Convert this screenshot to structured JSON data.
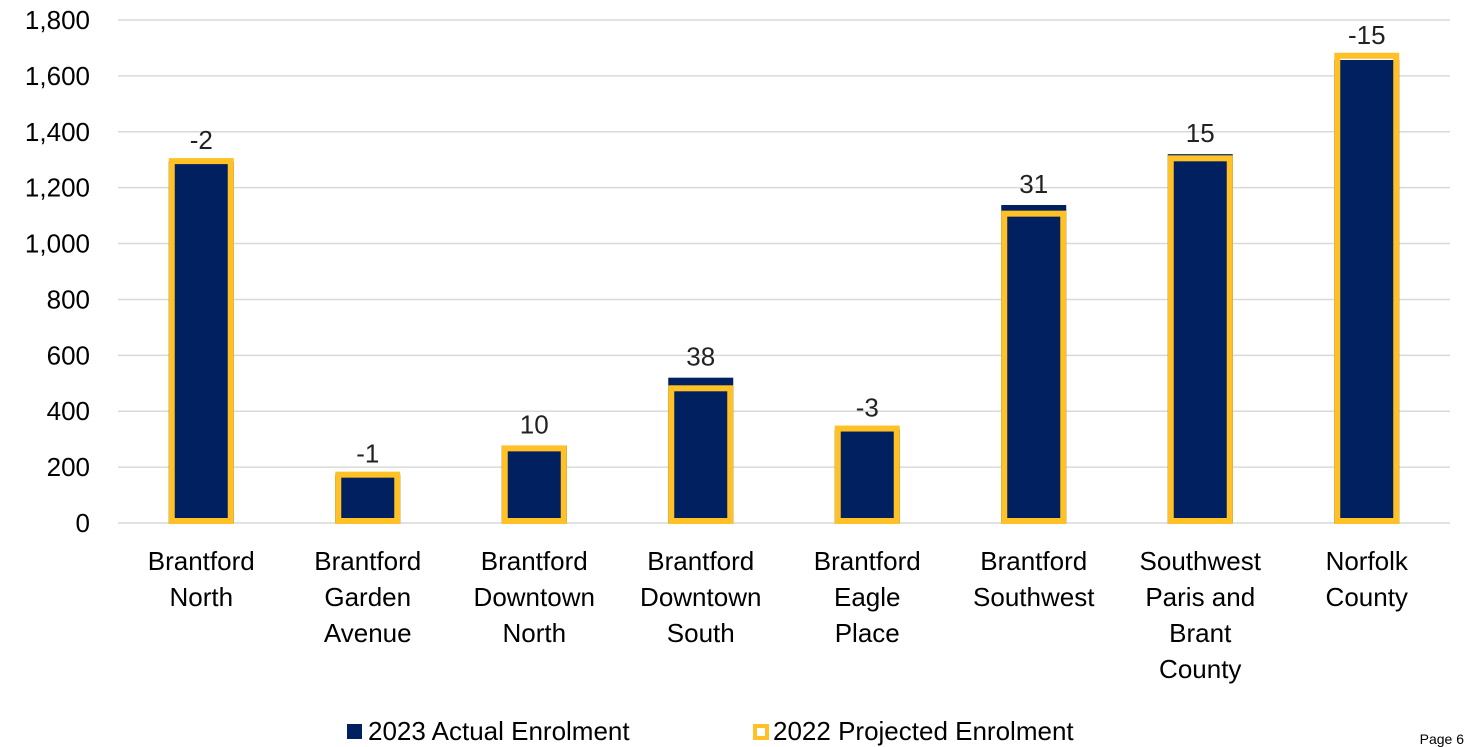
{
  "chart_data": {
    "type": "bar",
    "categories": [
      [
        "Brantford",
        "North"
      ],
      [
        "Brantford",
        "Garden",
        "Avenue"
      ],
      [
        "Brantford",
        "Downtown",
        "North"
      ],
      [
        "Brantford",
        "Downtown",
        "South"
      ],
      [
        "Brantford",
        "Eagle",
        "Place"
      ],
      [
        "Brantford",
        "Southwest"
      ],
      [
        "Southwest",
        "Paris and",
        "Brant",
        "County"
      ],
      [
        "Norfolk",
        "County"
      ]
    ],
    "series": [
      {
        "name": "2023 Actual Enrolment",
        "values": [
          1293,
          172,
          277,
          520,
          335,
          1138,
          1320,
          1657
        ],
        "color": "#002060"
      },
      {
        "name": "2022 Projected Enrolment",
        "values": [
          1295,
          173,
          267,
          482,
          338,
          1107,
          1305,
          1672
        ],
        "color": "#FFC125"
      }
    ],
    "data_labels": [
      "-2",
      "-1",
      "10",
      "38",
      "-3",
      "31",
      "15",
      "-15"
    ],
    "yticks": [
      "0",
      "200",
      "400",
      "600",
      "800",
      "1,000",
      "1,200",
      "1,400",
      "1,600",
      "1,800"
    ],
    "ylim": [
      0,
      1800
    ],
    "grid": true,
    "legend_position": "bottom"
  },
  "footer": {
    "page_label": "Page 6"
  }
}
